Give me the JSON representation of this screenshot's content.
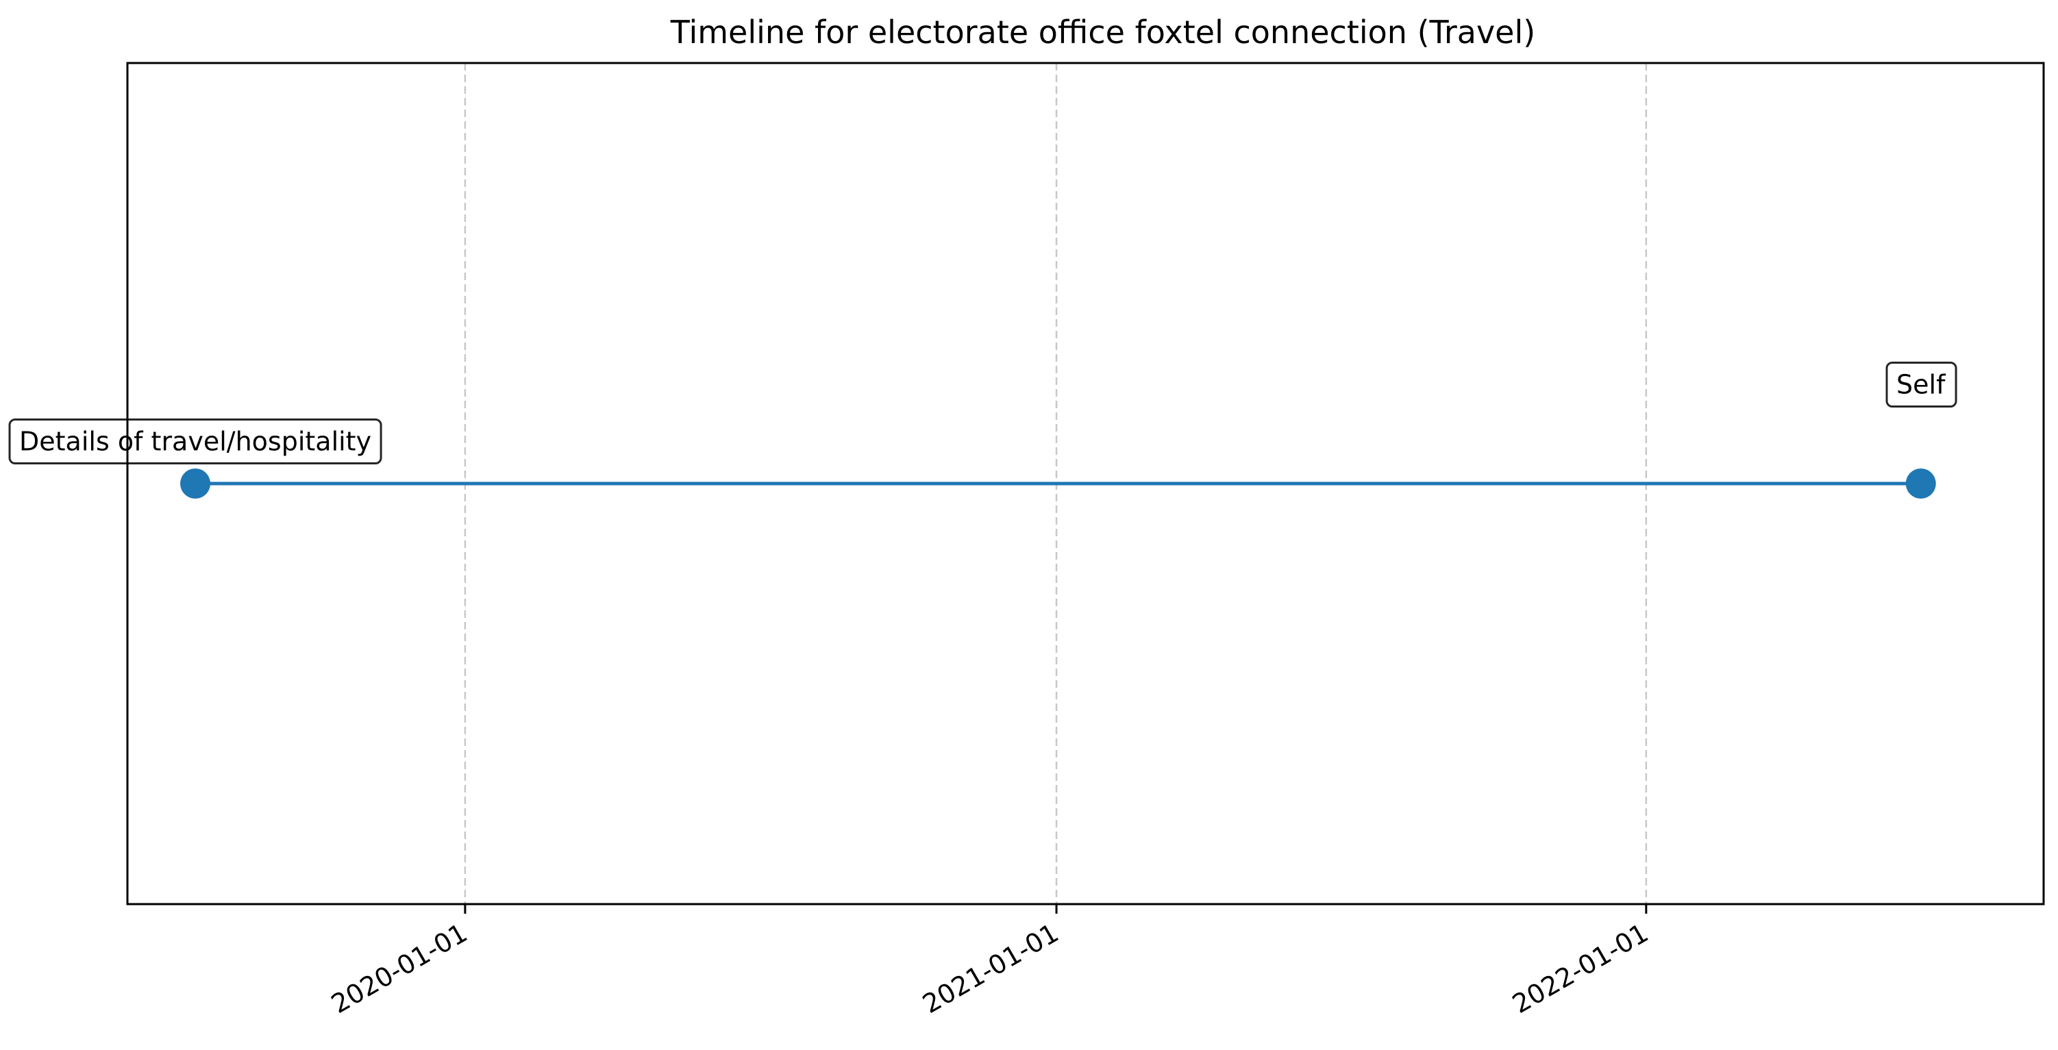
{
  "chart_data": {
    "type": "line",
    "title": "Timeline for electorate office foxtel connection (Travel)",
    "xlabel": "",
    "ylabel": "",
    "x_axis": "date",
    "xlim": [
      "2019-06-06",
      "2022-09-04"
    ],
    "ylim": [
      -1,
      1
    ],
    "grid": "x-only, dashed",
    "legend": "none",
    "x_ticks": [
      "2020-01-01",
      "2021-01-01",
      "2022-01-01"
    ],
    "series": [
      {
        "color": "#1f77b4",
        "points": [
          {
            "x": "2019-07-18",
            "y": 0,
            "label": "Details of travel/hospitality",
            "label_position": "above"
          },
          {
            "x": "2022-06-20",
            "y": 0,
            "label": "Self",
            "label_position": "higher above"
          }
        ]
      }
    ]
  }
}
